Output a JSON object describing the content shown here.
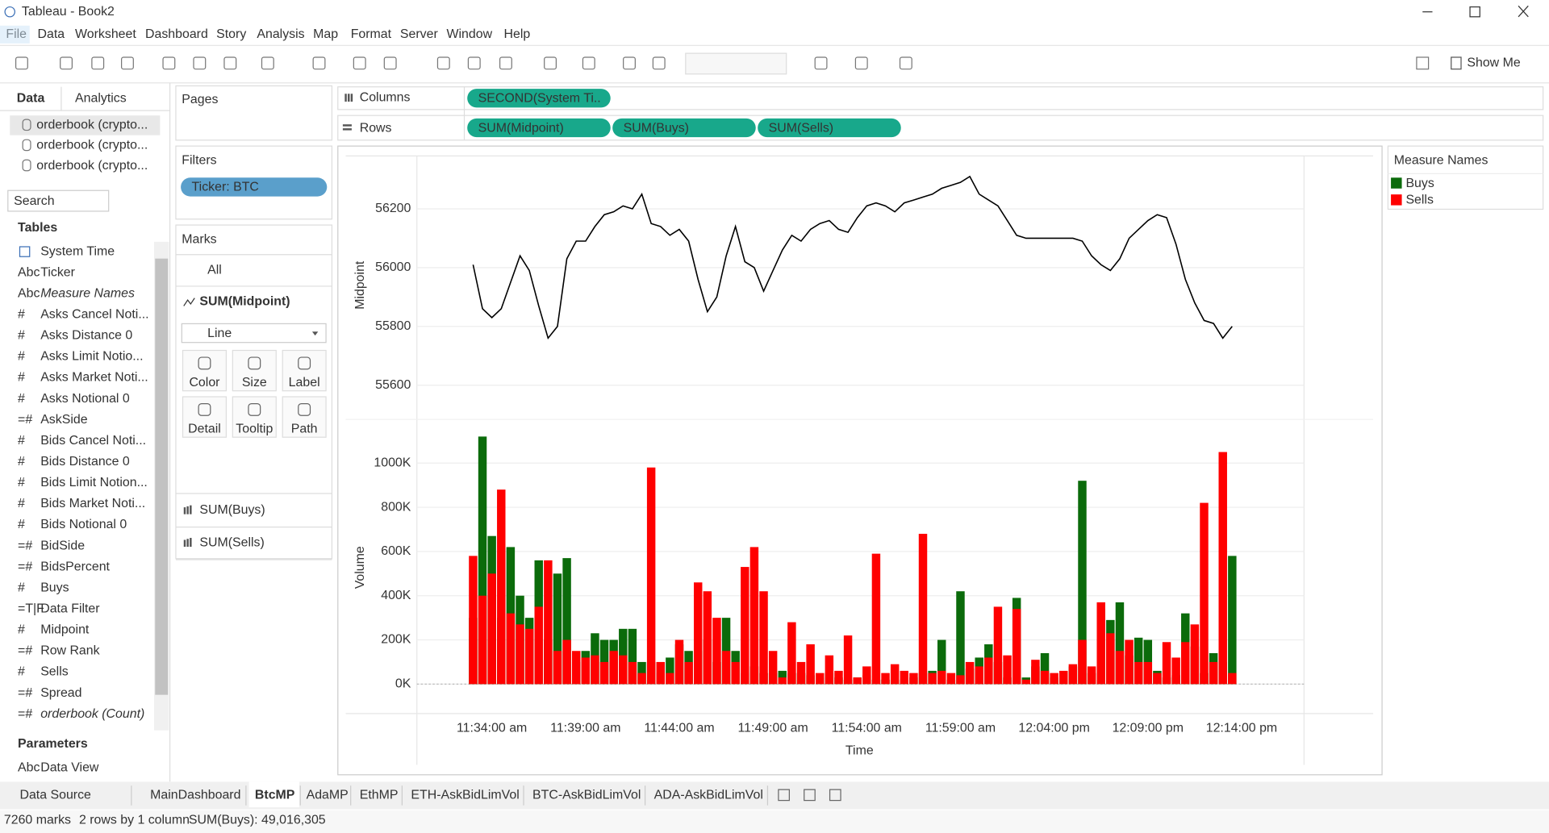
{
  "window": {
    "title": "Tableau - Book2"
  },
  "menu": [
    "File",
    "Data",
    "Worksheet",
    "Dashboard",
    "Story",
    "Analysis",
    "Map",
    "Format",
    "Server",
    "Window",
    "Help"
  ],
  "toolbar": {
    "show_me": "Show Me"
  },
  "data_pane": {
    "tabs": [
      "Data",
      "Analytics"
    ],
    "sources": [
      "orderbook (crypto...",
      "orderbook (crypto...",
      "orderbook (crypto..."
    ],
    "search": "Search",
    "tables_heading": "Tables",
    "fields": [
      {
        "name": "System Time"
      },
      {
        "icon": "Abc",
        "name": "Ticker"
      },
      {
        "icon": "Abc",
        "name": "Measure Names",
        "italic": true
      },
      {
        "icon": "#",
        "name": "Asks Cancel Noti..."
      },
      {
        "icon": "#",
        "name": "Asks Distance 0"
      },
      {
        "icon": "#",
        "name": "Asks Limit Notio..."
      },
      {
        "icon": "#",
        "name": "Asks Market Noti..."
      },
      {
        "icon": "#",
        "name": "Asks Notional 0"
      },
      {
        "icon": "=#",
        "name": "AskSide"
      },
      {
        "icon": "#",
        "name": "Bids Cancel Noti..."
      },
      {
        "icon": "#",
        "name": "Bids Distance 0"
      },
      {
        "icon": "#",
        "name": "Bids Limit Notion..."
      },
      {
        "icon": "#",
        "name": "Bids Market Noti..."
      },
      {
        "icon": "#",
        "name": "Bids Notional 0"
      },
      {
        "icon": "=#",
        "name": "BidSide"
      },
      {
        "icon": "=#",
        "name": "BidsPercent"
      },
      {
        "icon": "#",
        "name": "Buys"
      },
      {
        "icon": "=T|F",
        "name": "Data Filter"
      },
      {
        "icon": "#",
        "name": "Midpoint"
      },
      {
        "icon": "=#",
        "name": "Row Rank"
      },
      {
        "icon": "#",
        "name": "Sells"
      },
      {
        "icon": "=#",
        "name": "Spread"
      },
      {
        "icon": "=#",
        "name": "orderbook (Count)",
        "italic": true
      }
    ],
    "parameters_heading": "Parameters",
    "parameters": [
      {
        "icon": "Abc",
        "name": "Data View"
      }
    ]
  },
  "shelves": {
    "pages": "Pages",
    "filters": "Filters",
    "filter_pills": [
      "Ticker: BTC"
    ],
    "columns_label": "Columns",
    "columns": [
      "SECOND(System Ti.."
    ],
    "rows_label": "Rows",
    "rows": [
      "SUM(Midpoint)",
      "SUM(Buys)",
      "SUM(Sells)"
    ]
  },
  "marks": {
    "heading": "Marks",
    "all": "All",
    "current": "SUM(Midpoint)",
    "mark_type": "Line",
    "buttons": [
      "Color",
      "Size",
      "Label",
      "Detail",
      "Tooltip",
      "Path"
    ],
    "others": [
      "SUM(Buys)",
      "SUM(Sells)"
    ]
  },
  "chart_data": [
    {
      "type": "line",
      "y_label": "Midpoint",
      "color": "#000000",
      "grid": true,
      "x": [
        693,
        693.5,
        694,
        694.5,
        695,
        695.5,
        696,
        696.5,
        697,
        697.5,
        698,
        698.5,
        699,
        699.5,
        700,
        700.5,
        701,
        701.5,
        702,
        702.5,
        703,
        703.5,
        704,
        704.5,
        705,
        705.5,
        706,
        706.5,
        707,
        707.5,
        708,
        708.5,
        709,
        709.5,
        710,
        710.5,
        711,
        711.5,
        712,
        712.5,
        713,
        713.5,
        714,
        714.5,
        715,
        715.5,
        716,
        716.5,
        717,
        717.5,
        718,
        718.5,
        719,
        719.5,
        720,
        720.5,
        721,
        721.5,
        722,
        722.5,
        723,
        723.5,
        724,
        724.5,
        725,
        725.5,
        726,
        726.5,
        727,
        727.5,
        728,
        728.5,
        729,
        729.5,
        730,
        730.5,
        731,
        731.5,
        732,
        732.5,
        733,
        733.5
      ],
      "values": [
        56010,
        55860,
        55830,
        55860,
        55950,
        56040,
        55990,
        55870,
        55760,
        55800,
        56030,
        56090,
        56090,
        56140,
        56180,
        56190,
        56210,
        56200,
        56250,
        56150,
        56140,
        56110,
        56130,
        56090,
        55960,
        55850,
        55900,
        56040,
        56140,
        56020,
        56000,
        55920,
        55990,
        56060,
        56110,
        56090,
        56130,
        56150,
        56160,
        56130,
        56120,
        56170,
        56210,
        56220,
        56210,
        56190,
        56220,
        56230,
        56240,
        56250,
        56270,
        56280,
        56290,
        56310,
        56250,
        56230,
        56210,
        56160,
        56110,
        56100,
        56100,
        56100,
        56100,
        56100,
        56100,
        56090,
        56040,
        56010,
        55990,
        56030,
        56100,
        56130,
        56160,
        56180,
        56170,
        56080,
        55960,
        55880,
        55820,
        55810,
        55760,
        55800
      ],
      "xlim": [
        690,
        737.33
      ],
      "ylim": [
        55500,
        56380
      ],
      "yticks": [
        55600,
        55800,
        56000,
        56200
      ]
    },
    {
      "type": "bar",
      "y_label": "Volume",
      "x_label": "Time",
      "grid": true,
      "legend_title": "Measure Names",
      "x": [
        693,
        693.5,
        694,
        694.5,
        695,
        695.5,
        696,
        696.5,
        697,
        697.5,
        698,
        698.5,
        699,
        699.5,
        700,
        700.5,
        701,
        701.5,
        702,
        702.5,
        703,
        703.5,
        704,
        704.5,
        705,
        705.5,
        706,
        706.5,
        707,
        707.5,
        708,
        708.5,
        709,
        709.5,
        710,
        710.5,
        711,
        711.5,
        712,
        712.5,
        713,
        713.5,
        714,
        714.5,
        715,
        715.5,
        716,
        716.5,
        717,
        717.5,
        718,
        718.5,
        719,
        719.5,
        720,
        720.5,
        721,
        721.5,
        722,
        722.5,
        723,
        723.5,
        724,
        724.5,
        725,
        725.5,
        726,
        726.5,
        727,
        727.5,
        728,
        728.5,
        729,
        729.5,
        730,
        730.5,
        731,
        731.5,
        732,
        732.5,
        733,
        733.5
      ],
      "series": [
        {
          "name": "Buys",
          "color": "#0b6b0b",
          "values": [
            300000,
            1120000,
            670000,
            300000,
            620000,
            400000,
            300000,
            560000,
            200000,
            500000,
            570000,
            100000,
            150000,
            230000,
            200000,
            200000,
            250000,
            250000,
            100000,
            100000,
            50000,
            120000,
            180000,
            150000,
            150000,
            200000,
            100000,
            300000,
            150000,
            50000,
            80000,
            50000,
            50000,
            60000,
            50000,
            50000,
            40000,
            30000,
            50000,
            30000,
            20000,
            30000,
            40000,
            20000,
            20000,
            20000,
            20000,
            30000,
            50000,
            60000,
            200000,
            20000,
            420000,
            70000,
            120000,
            180000,
            100000,
            30000,
            390000,
            30000,
            80000,
            140000,
            30000,
            20000,
            80000,
            920000,
            50000,
            340000,
            290000,
            370000,
            130000,
            210000,
            200000,
            60000,
            30000,
            40000,
            320000,
            170000,
            50000,
            140000,
            100000,
            580000
          ]
        },
        {
          "name": "Sells",
          "color": "#ff0000",
          "values": [
            580000,
            400000,
            500000,
            880000,
            320000,
            270000,
            250000,
            350000,
            560000,
            150000,
            200000,
            150000,
            120000,
            130000,
            100000,
            150000,
            130000,
            100000,
            50000,
            980000,
            100000,
            50000,
            200000,
            100000,
            460000,
            420000,
            300000,
            150000,
            100000,
            530000,
            620000,
            420000,
            150000,
            30000,
            280000,
            100000,
            180000,
            50000,
            130000,
            60000,
            220000,
            30000,
            80000,
            590000,
            50000,
            90000,
            60000,
            50000,
            680000,
            50000,
            60000,
            50000,
            40000,
            100000,
            80000,
            120000,
            350000,
            130000,
            340000,
            20000,
            110000,
            60000,
            50000,
            60000,
            90000,
            200000,
            80000,
            370000,
            230000,
            150000,
            200000,
            100000,
            100000,
            50000,
            190000,
            120000,
            190000,
            270000,
            820000,
            100000,
            1050000,
            50000
          ]
        }
      ],
      "xlim": [
        690,
        737.33
      ],
      "xticks": [
        {
          "value": 694,
          "label": "11:34:00 am"
        },
        {
          "value": 699,
          "label": "11:39:00 am"
        },
        {
          "value": 704,
          "label": "11:44:00 am"
        },
        {
          "value": 709,
          "label": "11:49:00 am"
        },
        {
          "value": 714,
          "label": "11:54:00 am"
        },
        {
          "value": 719,
          "label": "11:59:00 am"
        },
        {
          "value": 724,
          "label": "12:04:00 pm"
        },
        {
          "value": 729,
          "label": "12:09:00 pm"
        },
        {
          "value": 734,
          "label": "12:14:00 pm"
        }
      ],
      "ylim": [
        -120000,
        1175000
      ],
      "yticks": [
        {
          "value": 0,
          "label": "0K"
        },
        {
          "value": 200000,
          "label": "200K"
        },
        {
          "value": 400000,
          "label": "400K"
        },
        {
          "value": 600000,
          "label": "600K"
        },
        {
          "value": 800000,
          "label": "800K"
        },
        {
          "value": 1000000,
          "label": "1000K"
        }
      ]
    }
  ],
  "sheet_tabs": [
    "Data Source",
    "MainDashboard",
    "BtcMP",
    "AdaMP",
    "EthMP",
    "ETH-AskBidLimVol",
    "BTC-AskBidLimVol",
    "ADA-AskBidLimVol"
  ],
  "active_tab": 2,
  "status": [
    "7260 marks",
    "2 rows by 1 column",
    "SUM(Buys): 49,016,305"
  ]
}
